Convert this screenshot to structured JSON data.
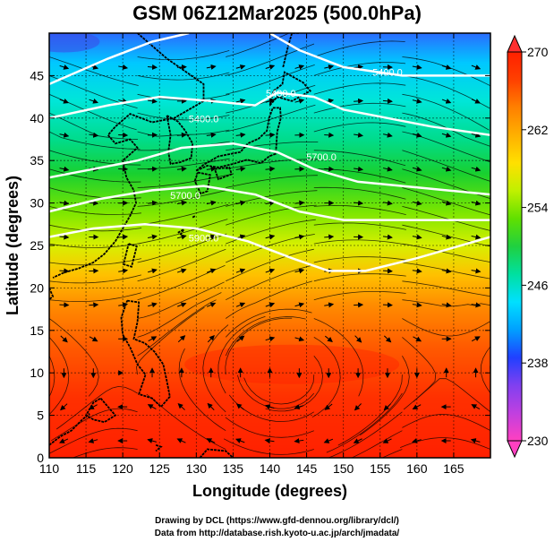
{
  "title": "GSM 06Z12Mar2025 (500.0hPa)",
  "credits": {
    "line1": "Drawing by DCL (https://www.gfd-dennou.org/library/dcl/)",
    "line2": "Data from http://database.rish.kyoto-u.ac.jp/arch/jmadata/"
  },
  "map": {
    "xlabel": "Longitude (degrees)",
    "ylabel": "Latitude  (degrees)",
    "xlim": [
      110,
      170
    ],
    "ylim": [
      0,
      50
    ],
    "xticks": [
      110,
      115,
      120,
      125,
      130,
      135,
      140,
      145,
      150,
      155,
      160,
      165
    ],
    "yticks": [
      0,
      5,
      10,
      15,
      20,
      25,
      30,
      35,
      40,
      45
    ],
    "contour_labels": [
      {
        "text": "5400.0",
        "lon": 141.5,
        "lat": 42.5
      },
      {
        "text": "5400.0",
        "lon": 156,
        "lat": 45
      },
      {
        "text": "5400.0",
        "lon": 131,
        "lat": 39.5
      },
      {
        "text": "5700.0",
        "lon": 147,
        "lat": 35
      },
      {
        "text": "5700.0",
        "lon": 128.5,
        "lat": 30.5
      },
      {
        "text": "5900.0",
        "lon": 131,
        "lat": 25.5
      }
    ],
    "contours": [
      [
        [
          110,
          44
        ],
        [
          118,
          47
        ],
        [
          124,
          49
        ],
        [
          129,
          50
        ]
      ],
      [
        [
          140,
          50
        ],
        [
          144,
          48
        ],
        [
          150,
          46
        ],
        [
          158,
          45
        ],
        [
          165,
          45
        ],
        [
          170,
          45
        ]
      ],
      [
        [
          110,
          40
        ],
        [
          118,
          41.5
        ],
        [
          125,
          42.5
        ],
        [
          132,
          42
        ],
        [
          138,
          41.5
        ],
        [
          141,
          43
        ],
        [
          146,
          42.5
        ],
        [
          150,
          41
        ],
        [
          156,
          40
        ],
        [
          162,
          39
        ],
        [
          170,
          38
        ]
      ],
      [
        [
          110,
          33
        ],
        [
          116,
          34
        ],
        [
          122,
          35
        ],
        [
          128,
          36.5
        ],
        [
          135,
          37
        ],
        [
          141,
          36
        ],
        [
          146,
          34
        ],
        [
          152,
          32.5
        ],
        [
          158,
          32
        ],
        [
          164,
          31.5
        ],
        [
          170,
          31
        ]
      ],
      [
        [
          110,
          29
        ],
        [
          117,
          30.5
        ],
        [
          124,
          31.5
        ],
        [
          131,
          32
        ],
        [
          138,
          31
        ],
        [
          144,
          29
        ],
        [
          150,
          28
        ],
        [
          156,
          28
        ],
        [
          163,
          28
        ],
        [
          170,
          28
        ]
      ],
      [
        [
          110,
          26
        ],
        [
          116,
          27
        ],
        [
          123,
          27.5
        ],
        [
          130,
          27
        ],
        [
          137,
          25.5
        ],
        [
          143,
          23.5
        ],
        [
          148,
          22
        ],
        [
          153,
          22
        ],
        [
          160,
          23.5
        ],
        [
          170,
          26
        ]
      ]
    ]
  },
  "colorbar": {
    "ticks": [
      230,
      238,
      246,
      254,
      262,
      270
    ],
    "range": [
      230,
      270
    ],
    "colors": [
      "#ff40c0",
      "#c040e0",
      "#8040f0",
      "#2040ff",
      "#00a0ff",
      "#00e0ff",
      "#00e0a0",
      "#20d040",
      "#60e000",
      "#c0f000",
      "#ffe000",
      "#ffb000",
      "#ff8000",
      "#ff4000",
      "#ff2000"
    ]
  }
}
